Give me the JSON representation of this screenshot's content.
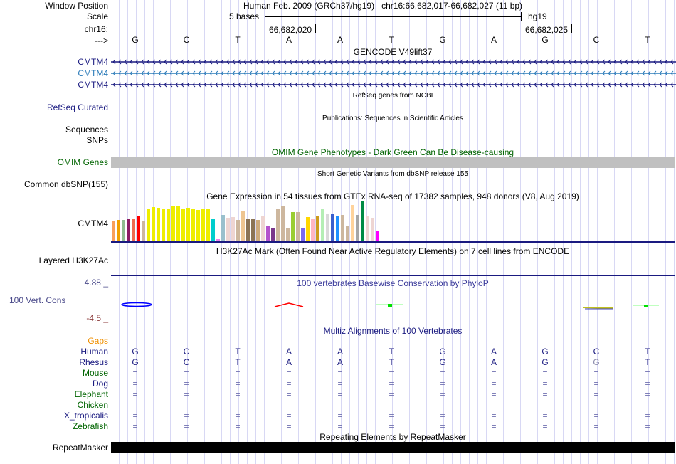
{
  "header": {
    "window_position_label": "Window Position",
    "position_text": "Human Feb. 2009 (GRCh37/hg19)   chr16:66,682,017-66,682,027 (11 bp)",
    "scale_label": "Scale",
    "scale_text": "5 bases",
    "assembly": "hg19",
    "chrom_label": "chr16:",
    "tick_left": "66,682,020",
    "tick_right": "66,682,025",
    "strand_label": "--->"
  },
  "bases": [
    "G",
    "C",
    "T",
    "A",
    "A",
    "T",
    "G",
    "A",
    "G",
    "C",
    "T"
  ],
  "gencode": {
    "title": "GENCODE V49lift37",
    "tracks": [
      {
        "label": "CMTM4",
        "color": "#1a1a80"
      },
      {
        "label": "CMTM4",
        "color": "#2b7bb9"
      },
      {
        "label": "CMTM4",
        "color": "#1a1a80"
      }
    ]
  },
  "refseq": {
    "title": "RefSeq genes from NCBI",
    "label": "RefSeq Curated"
  },
  "publications": {
    "title": "Publications: Sequences in Scientific Articles",
    "labels": [
      "Sequences",
      "SNPs"
    ]
  },
  "omim": {
    "title": "OMIM Gene Phenotypes - Dark Green Can Be Disease-causing",
    "label": "OMIM Genes"
  },
  "dbsnp": {
    "title": "Short Genetic Variants from dbSNP release 155",
    "label": "Common dbSNP(155)"
  },
  "gtex": {
    "title": "Gene Expression in 54 tissues from GTEx RNA-seq of 17382 samples, 948 donors (V8, Aug 2019)",
    "label": "CMTM4",
    "values": [
      29,
      30,
      30,
      31,
      31,
      35,
      28,
      46,
      48,
      47,
      45,
      45,
      49,
      50,
      46,
      47,
      46,
      44,
      46,
      45,
      31,
      3,
      37,
      32,
      34,
      30,
      43,
      31,
      31,
      30,
      35,
      22,
      19,
      45,
      49,
      18,
      41,
      41,
      19,
      34,
      31,
      36,
      46,
      38,
      38,
      36,
      37,
      21,
      51,
      37,
      56,
      36,
      32,
      14
    ],
    "colors": [
      "#f9a05a",
      "#f0a000",
      "#8fbc8f",
      "#8b1c62",
      "#ee6a50",
      "#ff0000",
      "#cdb79e",
      "#eeee00",
      "#eeee00",
      "#eeee00",
      "#eeee00",
      "#eeee00",
      "#eeee00",
      "#eeee00",
      "#eeee00",
      "#eeee00",
      "#eeee00",
      "#eeee00",
      "#eeee00",
      "#eeee00",
      "#00cdcd",
      "#ee82ee",
      "#9ac0cd",
      "#eed5d2",
      "#eed5d2",
      "#cdb79e",
      "#eec591",
      "#8b7355",
      "#8b7355",
      "#cdaa7d",
      "#eed5d2",
      "#b452cd",
      "#7a378b",
      "#cdb79e",
      "#cdb79e",
      "#cdb79e",
      "#9acd32",
      "#cdb79e",
      "#7b68ee",
      "#ffd700",
      "#ffb6c1",
      "#cd9b1d",
      "#b4eeb4",
      "#d9d9d9",
      "#3a5fcd",
      "#1e90ff",
      "#cdb79e",
      "#cdb79e",
      "#ffd39b",
      "#a6a6a6",
      "#008b45",
      "#eed5d2",
      "#eed5d2",
      "#ff00ff"
    ]
  },
  "h3k27ac": {
    "title": "H3K27Ac Mark (Often Found Near Active Regulatory Elements) on 7 cell lines from ENCODE",
    "label": "Layered H3K27Ac"
  },
  "phylop": {
    "title": "100 vertebrates Basewise Conservation by PhyloP",
    "label": "100 Vert. Cons",
    "max": "4.88 _",
    "min": "-4.5 _"
  },
  "multiz": {
    "title": "Multiz Alignments of 100 Vertebrates",
    "gaps_label": "Gaps",
    "species": [
      {
        "name": "Human",
        "color": "#1a1a80"
      },
      {
        "name": "Rhesus",
        "color": "#1a1a80"
      },
      {
        "name": "Mouse",
        "color": "#006400"
      },
      {
        "name": "Dog",
        "color": "#1a1a80"
      },
      {
        "name": "Elephant",
        "color": "#006400"
      },
      {
        "name": "Chicken",
        "color": "#006400"
      },
      {
        "name": "X_tropicalis",
        "color": "#1a1a80"
      },
      {
        "name": "Zebrafish",
        "color": "#006400"
      }
    ],
    "human": [
      "G",
      "C",
      "T",
      "A",
      "A",
      "T",
      "G",
      "A",
      "G",
      "C",
      "T"
    ],
    "rhesus": [
      "G",
      "C",
      "T",
      "A",
      "A",
      "T",
      "G",
      "A",
      "G",
      "G",
      "T"
    ],
    "same_symbol": "="
  },
  "repeatmasker": {
    "title": "Repeating Elements by RepeatMasker",
    "label": "RepeatMasker"
  }
}
